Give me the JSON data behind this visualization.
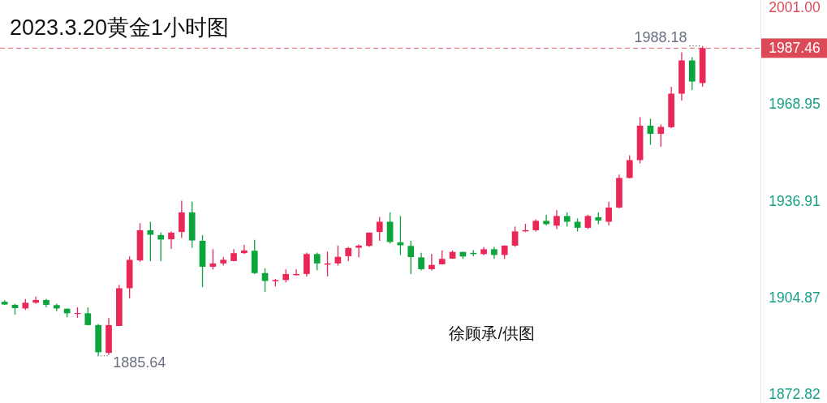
{
  "chart_data": {
    "type": "candlestick",
    "title": "2023.3.20黄金1小时图",
    "categories": [
      null,
      null,
      null,
      null,
      null,
      null,
      null,
      null,
      null,
      null,
      null,
      null,
      null,
      null,
      null,
      null,
      null,
      null,
      null,
      null,
      null,
      null,
      null,
      null,
      null,
      null,
      null,
      null,
      null,
      null,
      null,
      null,
      null,
      null,
      null,
      null,
      null,
      null,
      null,
      null,
      null,
      null,
      null,
      null,
      null,
      null,
      null,
      null,
      null,
      null,
      null,
      null,
      null,
      null,
      null,
      null,
      null,
      null,
      null,
      null,
      null,
      null,
      null,
      null,
      null,
      null,
      null,
      null
    ],
    "ohlc": [
      [
        1903.5,
        1904.0,
        1902.5,
        1902.6
      ],
      [
        1902.5,
        1902.8,
        1899.3,
        1901.4
      ],
      [
        1901.3,
        1904.4,
        1900.8,
        1903.2
      ],
      [
        1903.2,
        1905.2,
        1902.9,
        1904.1
      ],
      [
        1904.1,
        1904.5,
        1901.7,
        1902.5
      ],
      [
        1902.4,
        1902.9,
        1900.4,
        1901.3
      ],
      [
        1901.2,
        1901.3,
        1898.4,
        1899.7
      ],
      [
        1899.5,
        1901.7,
        1898.2,
        1899.8
      ],
      [
        1899.7,
        1901.7,
        1895.7,
        1895.8
      ],
      [
        1895.8,
        1896.2,
        1885.64,
        1886.8
      ],
      [
        1886.6,
        1898.1,
        1885.9,
        1895.8
      ],
      [
        1895.5,
        1909.1,
        1895.4,
        1908.0
      ],
      [
        1908.0,
        1918.5,
        1904.6,
        1917.4
      ],
      [
        1917.2,
        1929.5,
        1916.7,
        1927.2
      ],
      [
        1927.2,
        1930.0,
        1917.0,
        1925.7
      ],
      [
        1925.6,
        1926.4,
        1917.0,
        1924.1
      ],
      [
        1924.2,
        1926.8,
        1921.0,
        1926.4
      ],
      [
        1926.6,
        1937.0,
        1924.6,
        1933.1
      ],
      [
        1933.1,
        1936.6,
        1921.4,
        1923.8
      ],
      [
        1923.7,
        1925.6,
        1908.4,
        1915.1
      ],
      [
        1915.1,
        1920.9,
        1914.2,
        1916.2
      ],
      [
        1916.2,
        1918.3,
        1915.5,
        1917.4
      ],
      [
        1917.0,
        1920.9,
        1916.9,
        1919.6
      ],
      [
        1919.6,
        1922.4,
        1919.4,
        1920.5
      ],
      [
        1920.4,
        1924.0,
        1912.7,
        1913.0
      ],
      [
        1913.0,
        1914.6,
        1906.8,
        1910.4
      ],
      [
        1910.3,
        1911.1,
        1908.6,
        1910.7
      ],
      [
        1910.7,
        1914.2,
        1909.9,
        1912.7
      ],
      [
        1912.3,
        1914.2,
        1912.2,
        1912.7
      ],
      [
        1912.7,
        1919.8,
        1911.9,
        1919.3
      ],
      [
        1919.3,
        1919.8,
        1913.9,
        1916.2
      ],
      [
        1915.8,
        1920.1,
        1911.9,
        1916.2
      ],
      [
        1916.2,
        1922.1,
        1915.5,
        1918.4
      ],
      [
        1918.6,
        1921.7,
        1917.0,
        1921.3
      ],
      [
        1921.4,
        1922.5,
        1918.2,
        1922.1
      ],
      [
        1922.0,
        1926.5,
        1921.7,
        1926.4
      ],
      [
        1926.6,
        1931.6,
        1923.7,
        1930.0
      ],
      [
        1930.0,
        1933.1,
        1922.8,
        1923.3
      ],
      [
        1923.2,
        1931.9,
        1919.0,
        1922.2
      ],
      [
        1922.0,
        1923.7,
        1912.7,
        1918.3
      ],
      [
        1918.2,
        1919.7,
        1913.9,
        1914.3
      ],
      [
        1914.3,
        1919.3,
        1913.9,
        1915.7
      ],
      [
        1915.9,
        1920.5,
        1915.8,
        1917.7
      ],
      [
        1917.8,
        1920.5,
        1917.7,
        1920.0
      ],
      [
        1920.0,
        1920.1,
        1917.7,
        1918.5
      ],
      [
        1919.7,
        1920.6,
        1918.6,
        1919.3
      ],
      [
        1919.3,
        1921.7,
        1918.9,
        1920.9
      ],
      [
        1920.9,
        1921.7,
        1917.7,
        1919.0
      ],
      [
        1919.0,
        1922.2,
        1917.7,
        1922.1
      ],
      [
        1922.1,
        1928.4,
        1921.7,
        1926.8
      ],
      [
        1926.8,
        1929.3,
        1926.6,
        1927.2
      ],
      [
        1927.2,
        1930.8,
        1926.8,
        1930.3
      ],
      [
        1930.3,
        1932.3,
        1928.8,
        1929.2
      ],
      [
        1928.7,
        1933.9,
        1927.6,
        1931.9
      ],
      [
        1931.9,
        1933.1,
        1928.4,
        1930.0
      ],
      [
        1930.0,
        1931.1,
        1926.8,
        1928.0
      ],
      [
        1928.0,
        1932.3,
        1927.6,
        1931.9
      ],
      [
        1931.5,
        1933.1,
        1929.2,
        1930.4
      ],
      [
        1930.0,
        1936.6,
        1928.8,
        1934.7
      ],
      [
        1934.7,
        1945.6,
        1934.4,
        1944.5
      ],
      [
        1944.5,
        1952.0,
        1944.3,
        1950.4
      ],
      [
        1950.4,
        1964.6,
        1949.3,
        1961.8
      ],
      [
        1961.8,
        1964.1,
        1955.5,
        1959.1
      ],
      [
        1959.1,
        1962.2,
        1954.8,
        1961.4
      ],
      [
        1961.3,
        1974.7,
        1961.0,
        1972.4
      ],
      [
        1972.4,
        1986.1,
        1970.1,
        1983.4
      ],
      [
        1983.4,
        1984.5,
        1973.6,
        1976.4
      ],
      [
        1975.9,
        1988.18,
        1974.7,
        1987.46
      ]
    ],
    "colors": [
      "#0ca43c",
      "#0ca43c",
      "#ea2858",
      "#ea2858",
      "#0ca43c",
      "#0ca43c",
      "#0ca43c",
      "#ea2858",
      "#0ca43c",
      "#0ca43c",
      "#ea2858",
      "#ea2858",
      "#ea2858",
      "#ea2858",
      "#0ca43c",
      "#0ca43c",
      "#ea2858",
      "#ea2858",
      "#0ca43c",
      "#0ca43c",
      "#ea2858",
      "#ea2858",
      "#ea2858",
      "#ea2858",
      "#0ca43c",
      "#0ca43c",
      "#ea2858",
      "#ea2858",
      "#ea2858",
      "#ea2858",
      "#0ca43c",
      "#ea2858",
      "#ea2858",
      "#ea2858",
      "#ea2858",
      "#ea2858",
      "#ea2858",
      "#0ca43c",
      "#0ca43c",
      "#0ca43c",
      "#0ca43c",
      "#ea2858",
      "#ea2858",
      "#ea2858",
      "#0ca43c",
      "#0ca43c",
      "#ea2858",
      "#0ca43c",
      "#ea2858",
      "#ea2858",
      "#ea2858",
      "#ea2858",
      "#0ca43c",
      "#ea2858",
      "#0ca43c",
      "#0ca43c",
      "#ea2858",
      "#0ca43c",
      "#ea2858",
      "#ea2858",
      "#ea2858",
      "#ea2858",
      "#0ca43c",
      "#ea2858",
      "#ea2858",
      "#ea2858",
      "#0ca43c",
      "#ea2858"
    ],
    "ylim": [
      1870,
      2003.4
    ],
    "yticks": [
      {
        "value": 2001,
        "label": "2001.00"
      },
      1968.95,
      1936.91,
      1904.87,
      1872.82
    ],
    "tick_labels": "y",
    "ref_lines": [
      {
        "axis": "y",
        "value": 1987.46,
        "label": "1987.46",
        "color": "#dc4a57",
        "line_style": "dashed"
      }
    ],
    "annotations": [
      "1988.18",
      "1885.64",
      "徐顾承/供图"
    ]
  }
}
